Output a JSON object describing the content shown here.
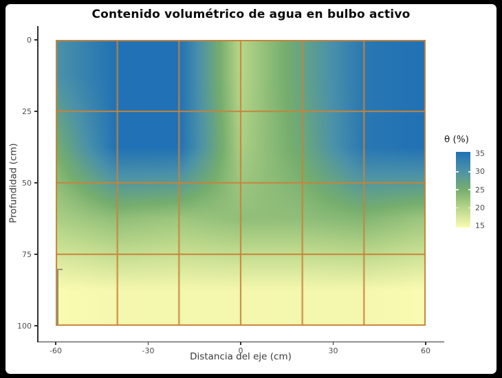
{
  "chart_data": {
    "type": "heatmap",
    "title": "Contenido volumétrico de agua en bulbo activo",
    "xlabel": "Distancia del eje (cm)",
    "ylabel": "Profundidad (cm)",
    "x_ticks": [
      -60,
      -30,
      0,
      30,
      60
    ],
    "y_ticks": [
      0,
      25,
      50,
      75,
      100
    ],
    "xlim": [
      -60,
      60
    ],
    "ylim": [
      0,
      100
    ],
    "y_reversed": true,
    "interpolate": true,
    "grid_cell_width_cm": 20,
    "grid_cell_height_cm": 25,
    "grid_line_color": "#c6843c",
    "grid_x_cm": [
      -60,
      -40,
      -20,
      0,
      20,
      40,
      60
    ],
    "grid_depth_cm": [
      12.5,
      37.5,
      62.5,
      87.5
    ],
    "theta_values": [
      [
        30.0,
        35.0,
        35.0,
        20.0,
        27.0,
        34.0,
        35.0
      ],
      [
        25.0,
        35.0,
        35.0,
        21.0,
        26.0,
        34.0,
        35.0
      ],
      [
        21.0,
        23.0,
        22.0,
        23.0,
        23.0,
        24.0,
        22.0
      ],
      [
        15.0,
        15.5,
        15.5,
        15.5,
        15.5,
        15.5,
        15.0
      ]
    ],
    "legend": {
      "title": "θ (%)",
      "min": 15,
      "max": 35,
      "ticks": [
        35,
        30,
        25,
        20,
        15
      ],
      "notch_values": [
        30,
        25,
        20
      ]
    },
    "colormap": [
      {
        "value": 15,
        "color": "#fbfbb2"
      },
      {
        "value": 20,
        "color": "#b9d78a"
      },
      {
        "value": 25,
        "color": "#76ae6e"
      },
      {
        "value": 30,
        "color": "#4c92a8"
      },
      {
        "value": 35,
        "color": "#2071b5"
      }
    ]
  }
}
